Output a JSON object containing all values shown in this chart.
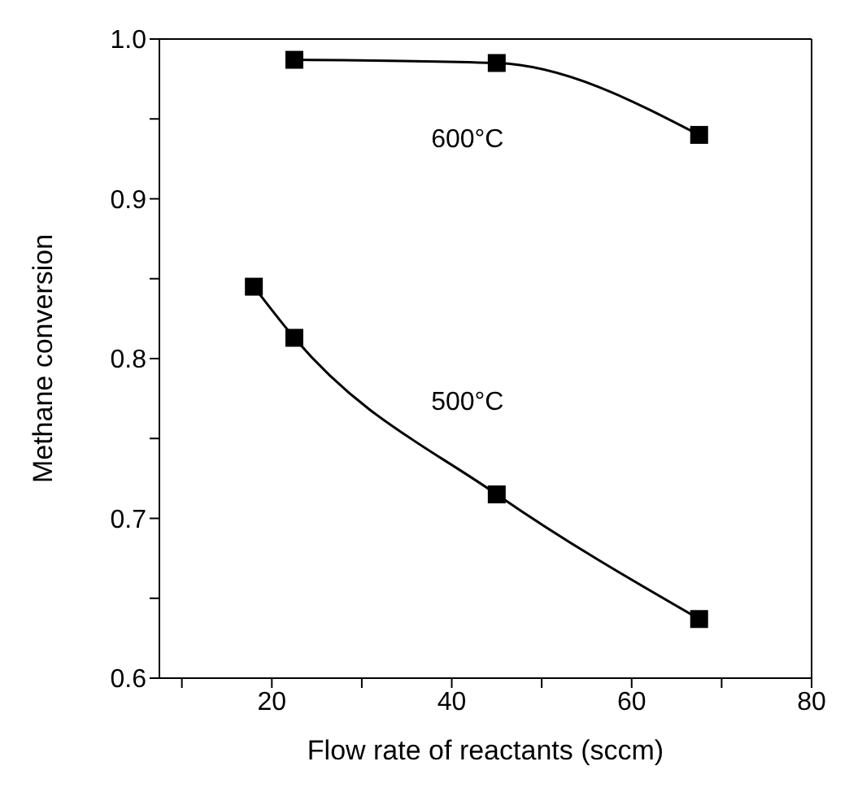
{
  "chart_data": {
    "type": "line",
    "xlabel": "Flow rate of reactants (sccm)",
    "ylabel": "Methane conversion",
    "xlim": [
      7.5,
      80
    ],
    "xticks": [
      {
        "value": 10,
        "label": null
      },
      20,
      {
        "value": 30,
        "label": null
      },
      40,
      {
        "value": 50,
        "label": null
      },
      60,
      {
        "value": 70,
        "label": null
      },
      80
    ],
    "ylim": [
      0.6,
      1.0
    ],
    "yticks": [
      {
        "value": 0.6,
        "label": "0.6"
      },
      {
        "value": 0.65,
        "label": null
      },
      {
        "value": 0.7,
        "label": "0.7"
      },
      {
        "value": 0.75,
        "label": null
      },
      {
        "value": 0.8,
        "label": "0.8"
      },
      {
        "value": 0.85,
        "label": null
      },
      {
        "value": 0.9,
        "label": "0.9"
      },
      {
        "value": 0.95,
        "label": null
      },
      {
        "value": 1.0,
        "label": "1.0"
      }
    ],
    "marker": "square",
    "line_style": "solid",
    "series": [
      {
        "name": "600°C",
        "color": "#000000",
        "x": [
          22.5,
          45,
          67.5
        ],
        "values": [
          0.987,
          0.985,
          0.94
        ]
      },
      {
        "name": "500°C",
        "color": "#000000",
        "x": [
          18,
          22.5,
          45,
          67.5
        ],
        "values": [
          0.845,
          0.813,
          0.715,
          0.637
        ]
      }
    ]
  }
}
